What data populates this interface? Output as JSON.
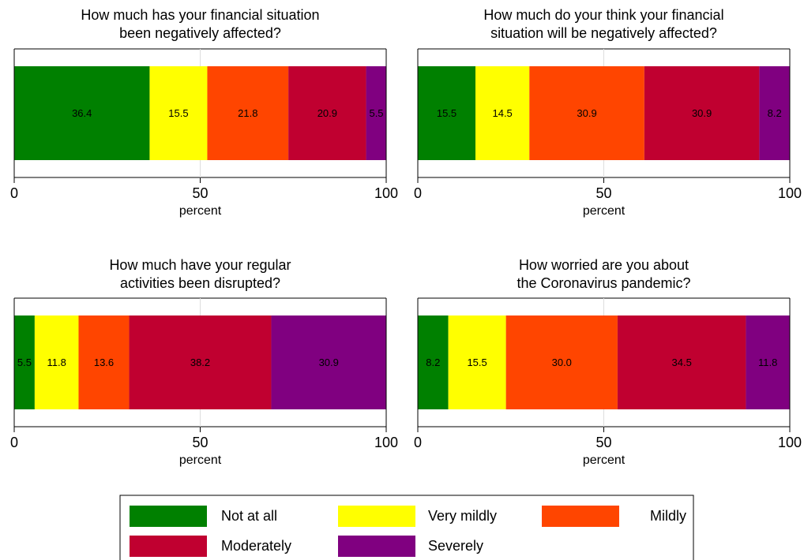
{
  "chart_data": [
    {
      "type": "stacked-bar",
      "title": "How much has your financial situation\nbeen negatively affected?",
      "xlabel": "percent",
      "xlim": [
        0,
        100
      ],
      "xticks": [
        0,
        50,
        100
      ],
      "grid": true,
      "series": [
        {
          "name": "Not at all",
          "color": "#008000",
          "values": [
            36.4
          ]
        },
        {
          "name": "Very mildly",
          "color": "#ffff00",
          "values": [
            15.5
          ]
        },
        {
          "name": "Mildly",
          "color": "#ff4500",
          "values": [
            21.8
          ]
        },
        {
          "name": "Moderately",
          "color": "#c00030",
          "values": [
            20.9
          ]
        },
        {
          "name": "Severely",
          "color": "#800080",
          "values": [
            5.5
          ]
        }
      ]
    },
    {
      "type": "stacked-bar",
      "title": "How much do your think your financial\nsituation will be negatively affected?",
      "xlabel": "percent",
      "xlim": [
        0,
        100
      ],
      "xticks": [
        0,
        50,
        100
      ],
      "grid": true,
      "series": [
        {
          "color": "#008000",
          "values": [
            15.5
          ]
        },
        {
          "color": "#ffff00",
          "values": [
            14.5
          ]
        },
        {
          "color": "#ff4500",
          "values": [
            30.9
          ]
        },
        {
          "color": "#c00030",
          "values": [
            30.9
          ]
        },
        {
          "color": "#800080",
          "values": [
            8.2
          ]
        }
      ]
    },
    {
      "type": "stacked-bar",
      "title": "How much have your regular\nactivities been disrupted?",
      "xlabel": "percent",
      "xlim": [
        0,
        100
      ],
      "xticks": [
        0,
        50,
        100
      ],
      "grid": true,
      "series": [
        {
          "color": "#008000",
          "values": [
            5.5
          ]
        },
        {
          "color": "#ffff00",
          "values": [
            11.8
          ]
        },
        {
          "color": "#ff4500",
          "values": [
            13.6
          ]
        },
        {
          "color": "#c00030",
          "values": [
            38.2
          ]
        },
        {
          "color": "#800080",
          "values": [
            30.9
          ]
        }
      ]
    },
    {
      "type": "stacked-bar",
      "title": "How worried are you about\nthe Coronavirus pandemic?",
      "xlabel": "percent",
      "xlim": [
        0,
        100
      ],
      "xticks": [
        0,
        50,
        100
      ],
      "grid": true,
      "series": [
        {
          "color": "#008000",
          "values": [
            8.2
          ]
        },
        {
          "color": "#ffff00",
          "values": [
            15.5
          ]
        },
        {
          "color": "#ff4500",
          "values": [
            30.0
          ],
          "value_labels": [
            "30.0"
          ]
        },
        {
          "color": "#c00030",
          "values": [
            34.5
          ]
        },
        {
          "color": "#800080",
          "values": [
            11.8
          ]
        }
      ]
    }
  ]
}
